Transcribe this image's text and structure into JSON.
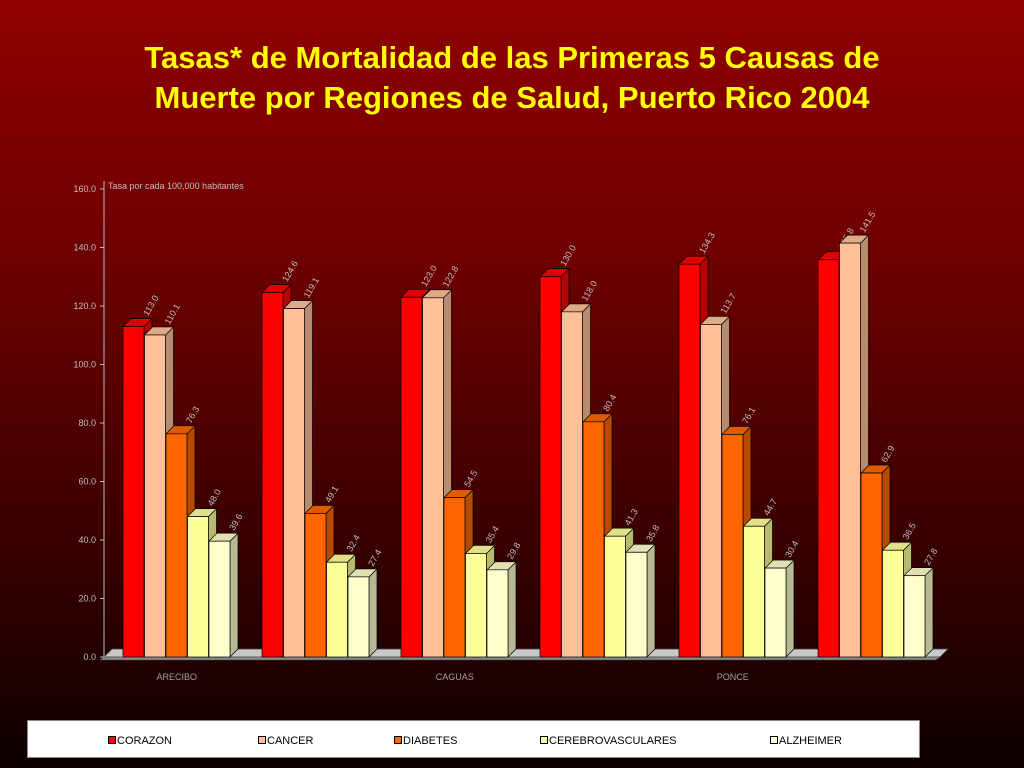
{
  "title": {
    "line1": "Tasas* de Mortalidad de las Primeras 5 Causas de",
    "line2": "Muerte por Regiones de Salud, Puerto Rico 2004"
  },
  "colors": {
    "CORAZON": "#ff0000",
    "CANCER": "#ffc099",
    "DIABETES": "#ff6600",
    "CEREBROVASCULARES": "#ffff99",
    "ALZHEIMER": "#ffffcc",
    "floor": "#bdbdbd",
    "title": "#ffff00"
  },
  "chart_data": {
    "type": "bar",
    "title": "Tasas* de Mortalidad de las Primeras 5 Causas de Muerte por Regiones de Salud, Puerto Rico 2004",
    "ylabel": "Tasa por cada 100,000 habitantes",
    "xlabel": "",
    "ylim": [
      0,
      160
    ],
    "yticks": [
      "0.0",
      "20.0",
      "40.0",
      "60.0",
      "80.0",
      "100.0",
      "120.0",
      "140.0",
      "160.0"
    ],
    "category_labels_shown": [
      "ARECIBO",
      "CAGUAS",
      "PONCE"
    ],
    "categories": [
      "ARECIBO",
      "",
      "CAGUAS",
      "",
      "PONCE",
      ""
    ],
    "series": [
      {
        "name": "CORAZON",
        "values": [
          113.0,
          124.6,
          123.0,
          130.0,
          134.3,
          135.8
        ],
        "labels": [
          "113.0",
          "124.6",
          "123.0",
          "130.0",
          "134.3",
          "135.8"
        ]
      },
      {
        "name": "CANCER",
        "values": [
          110.1,
          119.1,
          122.8,
          118.0,
          113.7,
          141.5
        ],
        "labels": [
          "110.1",
          "119.1",
          "122.8",
          "118.0",
          "113.7",
          "141.5"
        ]
      },
      {
        "name": "DIABETES",
        "values": [
          76.3,
          49.1,
          54.5,
          80.4,
          76.1,
          62.9
        ],
        "labels": [
          "76.3",
          "49.1",
          "54.5",
          "80.4",
          "76.1",
          "62.9"
        ]
      },
      {
        "name": "CEREBROVASCULARES",
        "values": [
          48.0,
          32.4,
          35.4,
          41.3,
          44.7,
          36.5
        ],
        "labels": [
          "48.0",
          "32.4",
          "35.4",
          "41.3",
          "44.7",
          "36.5"
        ]
      },
      {
        "name": "ALZHEIMER",
        "values": [
          39.6,
          27.4,
          29.8,
          35.8,
          30.4,
          27.8
        ],
        "labels": [
          "39.6",
          "27.4",
          "29.8",
          "35.8",
          "30.4",
          "27.8"
        ]
      }
    ],
    "legend_position": "bottom",
    "grid": false
  }
}
